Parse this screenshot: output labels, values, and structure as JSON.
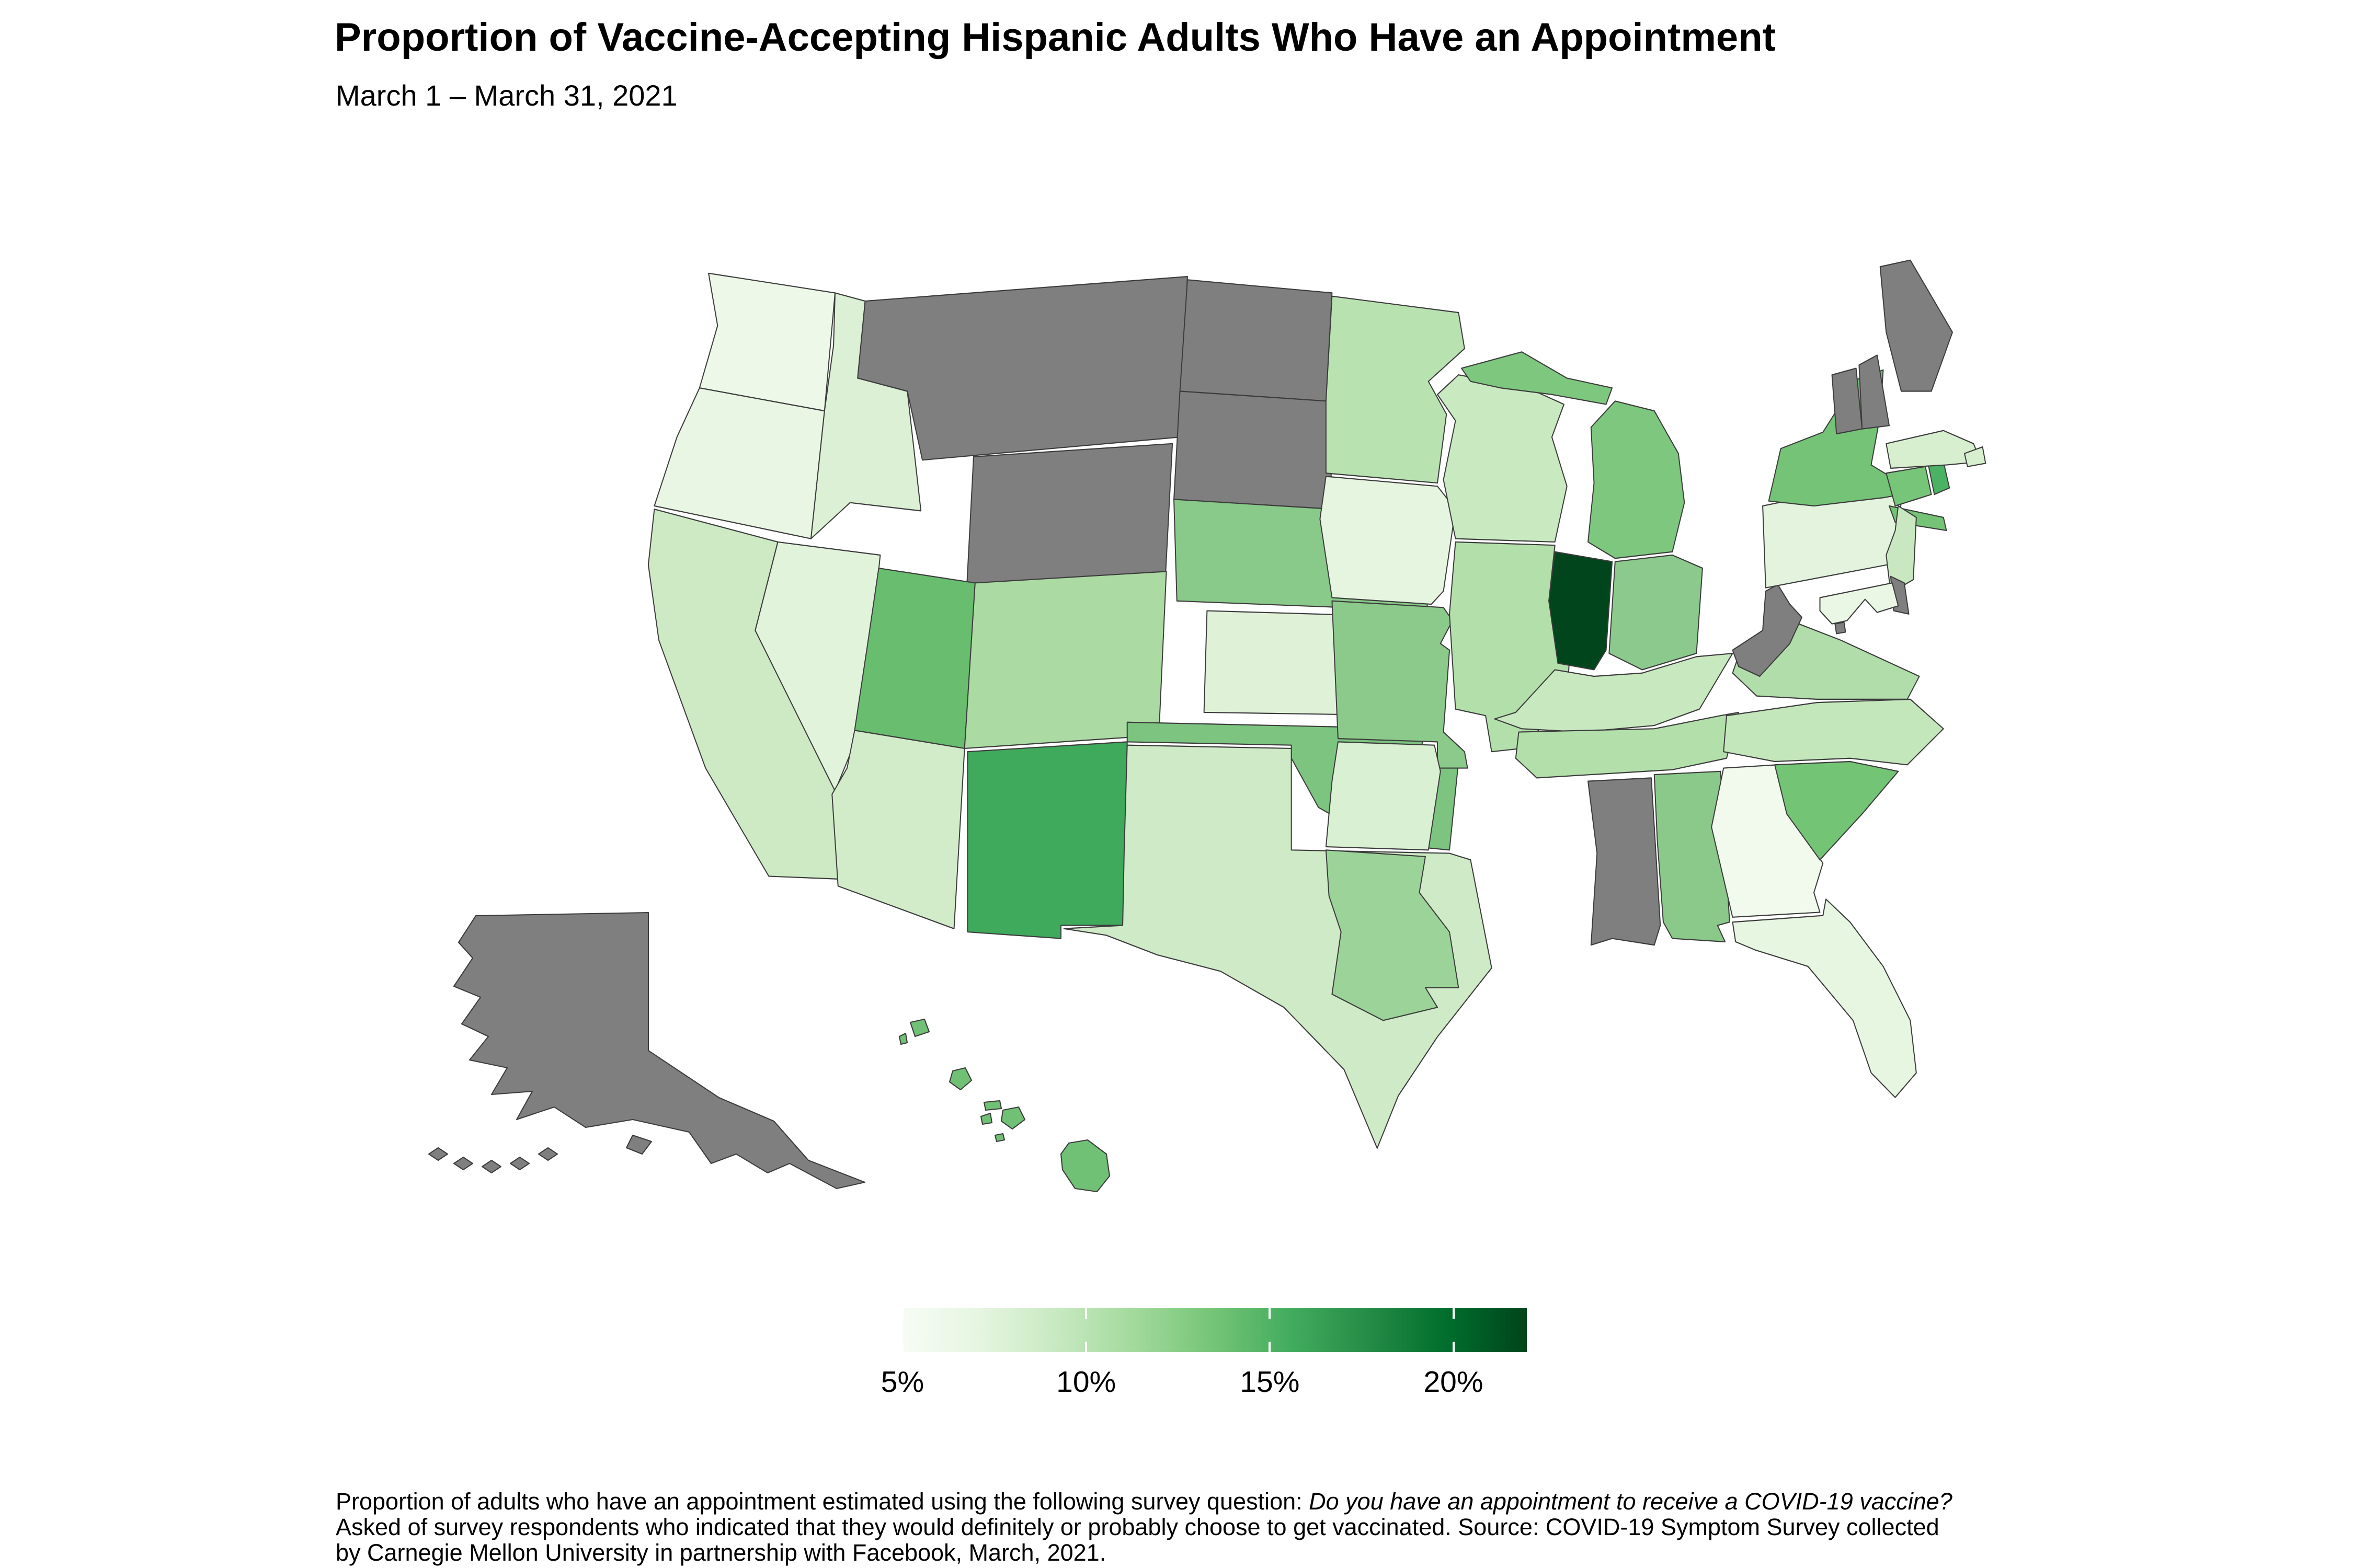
{
  "title": "Proportion of Vaccine-Accepting Hispanic Adults Who Have an Appointment",
  "subtitle": "March 1 – March 31, 2021",
  "caption": {
    "line1_normal": "Proportion of adults who have an appointment estimated using the following survey question: ",
    "line1_italic": "Do you have an appointment to receive a COVID-19 vaccine?",
    "line2": "Asked of survey respondents who indicated that they would definitely or probably choose to get vaccinated. Source: COVID-19 Symptom Survey collected",
    "line3": "by Carnegie Mellon University in partnership with Facebook, March, 2021."
  },
  "chart_data": {
    "type": "choropleth",
    "region": "United States",
    "title": "Proportion of Vaccine-Accepting Hispanic Adults Who Have an Appointment",
    "subtitle": "March 1 – March 31, 2021",
    "metric": "Percent of vaccine-accepting Hispanic adults with a vaccine appointment",
    "legend": {
      "unit": "%",
      "min": 5,
      "max": 22,
      "tick_labels": [
        "5%",
        "10%",
        "15%",
        "20%"
      ],
      "tick_values": [
        5,
        10,
        15,
        20
      ],
      "gradient": [
        {
          "pos": 0.0,
          "color": "#f7fcf5"
        },
        {
          "pos": 0.125,
          "color": "#e5f5e0"
        },
        {
          "pos": 0.25,
          "color": "#c7e9c0"
        },
        {
          "pos": 0.375,
          "color": "#a1d99b"
        },
        {
          "pos": 0.5,
          "color": "#74c476"
        },
        {
          "pos": 0.625,
          "color": "#41ab5d"
        },
        {
          "pos": 0.75,
          "color": "#238b45"
        },
        {
          "pos": 0.875,
          "color": "#006d2c"
        },
        {
          "pos": 1.0,
          "color": "#00441b"
        }
      ],
      "no_data_color": "#7f7f7f"
    },
    "states": [
      {
        "abbr": "WA",
        "name": "Washington",
        "value": 5.5,
        "color": "#edf8e9"
      },
      {
        "abbr": "OR",
        "name": "Oregon",
        "value": 6,
        "color": "#e9f6e4"
      },
      {
        "abbr": "CA",
        "name": "California",
        "value": 8.5,
        "color": "#cdeac4"
      },
      {
        "abbr": "NV",
        "name": "Nevada",
        "value": 6.5,
        "color": "#e2f3dc"
      },
      {
        "abbr": "ID",
        "name": "Idaho",
        "value": 7,
        "color": "#dbf0d4"
      },
      {
        "abbr": "MT",
        "name": "Montana",
        "value": null,
        "color": null
      },
      {
        "abbr": "WY",
        "name": "Wyoming",
        "value": null,
        "color": null
      },
      {
        "abbr": "UT",
        "name": "Utah",
        "value": 14,
        "color": "#68bd6e"
      },
      {
        "abbr": "CO",
        "name": "Colorado",
        "value": 10.5,
        "color": "#abdaa3"
      },
      {
        "abbr": "AZ",
        "name": "Arizona",
        "value": 7.5,
        "color": "#d2ecca"
      },
      {
        "abbr": "NM",
        "name": "New Mexico",
        "value": 15.5,
        "color": "#3fa95c"
      },
      {
        "abbr": "ND",
        "name": "North Dakota",
        "value": null,
        "color": null
      },
      {
        "abbr": "SD",
        "name": "South Dakota",
        "value": null,
        "color": null
      },
      {
        "abbr": "NE",
        "name": "Nebraska",
        "value": 12.5,
        "color": "#89c989"
      },
      {
        "abbr": "KS",
        "name": "Kansas",
        "value": 6.5,
        "color": "#dff2d8"
      },
      {
        "abbr": "OK",
        "name": "Oklahoma",
        "value": 13,
        "color": "#7cc47f"
      },
      {
        "abbr": "TX",
        "name": "Texas",
        "value": 8.5,
        "color": "#cfeac6"
      },
      {
        "abbr": "MN",
        "name": "Minnesota",
        "value": 10,
        "color": "#b9e2b1"
      },
      {
        "abbr": "IA",
        "name": "Iowa",
        "value": 7,
        "color": "#e6f5e0"
      },
      {
        "abbr": "MO",
        "name": "Missouri",
        "value": 12,
        "color": "#8cca8c"
      },
      {
        "abbr": "AR",
        "name": "Arkansas",
        "value": 7.5,
        "color": "#d9f0d2"
      },
      {
        "abbr": "LA",
        "name": "Louisiana",
        "value": 11.5,
        "color": "#9bd399"
      },
      {
        "abbr": "WI",
        "name": "Wisconsin",
        "value": 9.5,
        "color": "#c9e9c1"
      },
      {
        "abbr": "IL",
        "name": "Illinois",
        "value": 10,
        "color": "#b3dfab"
      },
      {
        "abbr": "MI",
        "name": "Michigan",
        "value": 12.5,
        "color": "#7ec77f"
      },
      {
        "abbr": "IN",
        "name": "Indiana",
        "value": 22,
        "color": "#01451c"
      },
      {
        "abbr": "OH",
        "name": "Ohio",
        "value": 11.5,
        "color": "#8cc98c"
      },
      {
        "abbr": "KY",
        "name": "Kentucky",
        "value": 9,
        "color": "#c8e8c0"
      },
      {
        "abbr": "TN",
        "name": "Tennessee",
        "value": 10,
        "color": "#b2dfaa"
      },
      {
        "abbr": "MS",
        "name": "Mississippi",
        "value": null,
        "color": null
      },
      {
        "abbr": "AL",
        "name": "Alabama",
        "value": 12,
        "color": "#8bc98b"
      },
      {
        "abbr": "GA",
        "name": "Georgia",
        "value": 5.5,
        "color": "#f1faed"
      },
      {
        "abbr": "FL",
        "name": "Florida",
        "value": 7,
        "color": "#e7f6e1"
      },
      {
        "abbr": "SC",
        "name": "South Carolina",
        "value": 13.5,
        "color": "#74c476"
      },
      {
        "abbr": "NC",
        "name": "North Carolina",
        "value": 9,
        "color": "#c3e6bb"
      },
      {
        "abbr": "VA",
        "name": "Virginia",
        "value": 10,
        "color": "#b0dda9"
      },
      {
        "abbr": "WV",
        "name": "West Virginia",
        "value": null,
        "color": null
      },
      {
        "abbr": "PA",
        "name": "Pennsylvania",
        "value": 6.5,
        "color": "#e3f3dd"
      },
      {
        "abbr": "NY",
        "name": "New York",
        "value": 13,
        "color": "#74c376"
      },
      {
        "abbr": "NJ",
        "name": "New Jersey",
        "value": 9,
        "color": "#c9e8c1"
      },
      {
        "abbr": "DE",
        "name": "Delaware",
        "value": null,
        "color": null
      },
      {
        "abbr": "MD",
        "name": "Maryland",
        "value": 6,
        "color": "#eaf7e4"
      },
      {
        "abbr": "DC",
        "name": "District of Columbia",
        "value": null,
        "color": null
      },
      {
        "abbr": "CT",
        "name": "Connecticut",
        "value": 13,
        "color": "#77c578"
      },
      {
        "abbr": "RI",
        "name": "Rhode Island",
        "value": 15,
        "color": "#4bb163"
      },
      {
        "abbr": "MA",
        "name": "Massachusetts",
        "value": 7.5,
        "color": "#d7efcf"
      },
      {
        "abbr": "VT",
        "name": "Vermont",
        "value": null,
        "color": null
      },
      {
        "abbr": "NH",
        "name": "New Hampshire",
        "value": null,
        "color": null
      },
      {
        "abbr": "ME",
        "name": "Maine",
        "value": null,
        "color": null
      },
      {
        "abbr": "AK",
        "name": "Alaska",
        "value": null,
        "color": null
      },
      {
        "abbr": "HI",
        "name": "Hawaii",
        "value": 13,
        "color": "#70c175"
      }
    ]
  }
}
